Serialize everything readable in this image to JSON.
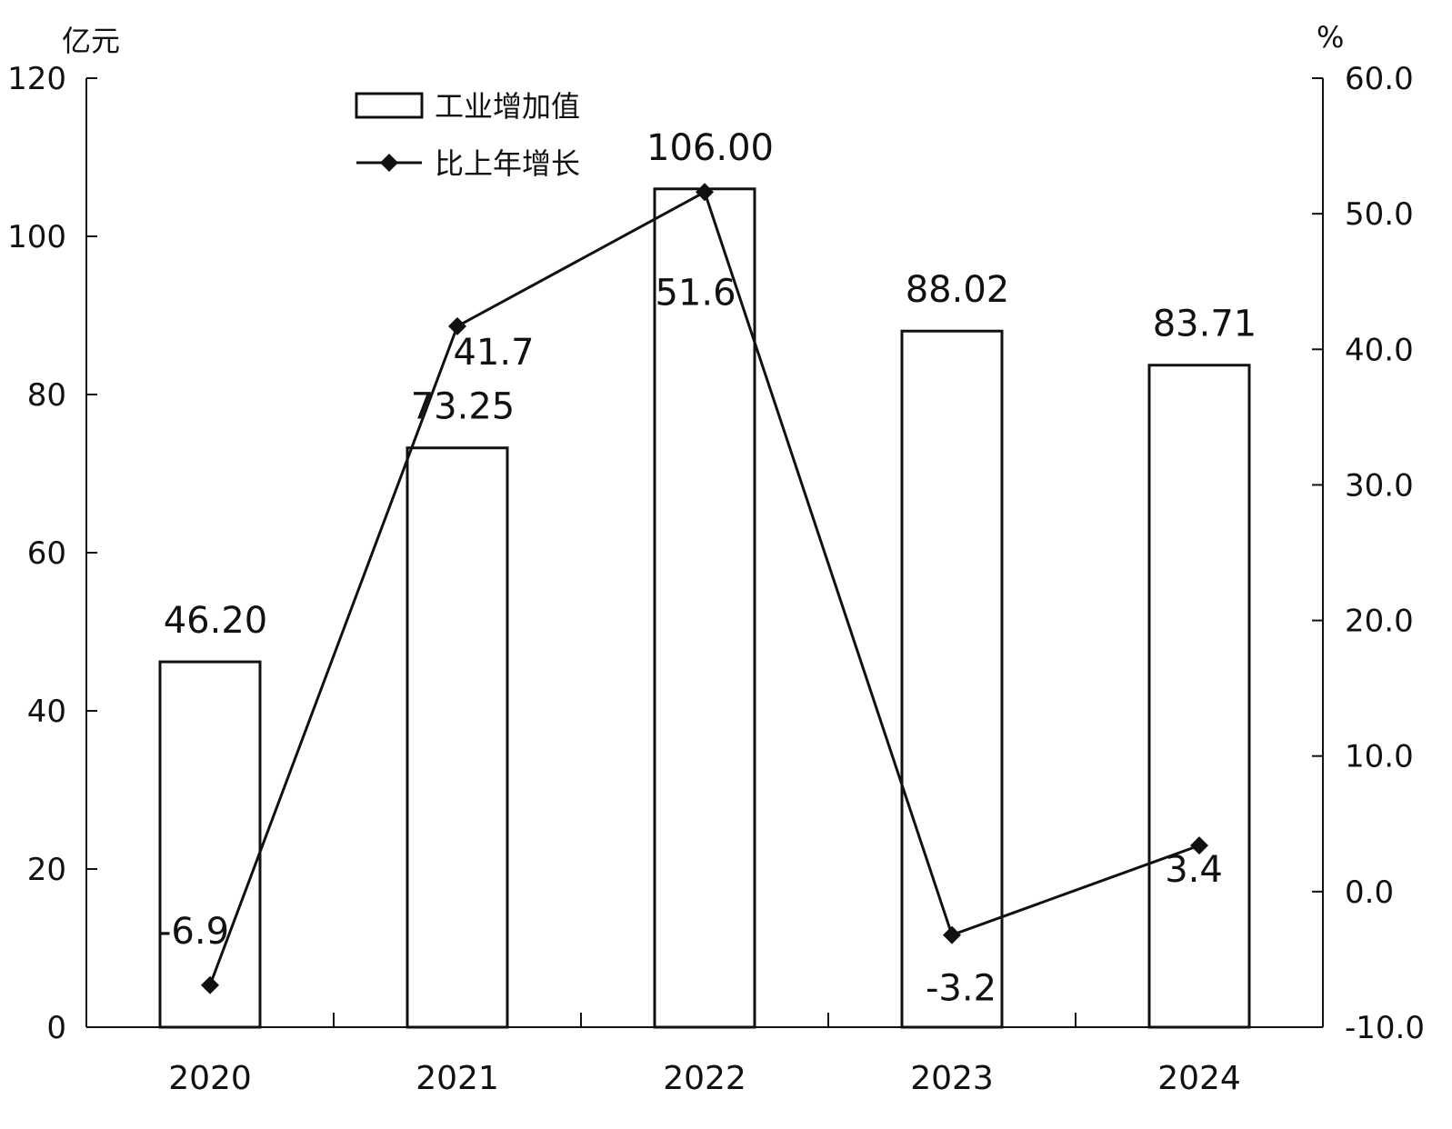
{
  "chart_data": {
    "type": "bar",
    "categories": [
      "2020",
      "2021",
      "2022",
      "2023",
      "2024"
    ],
    "series": [
      {
        "name": "工业增加值",
        "type": "bar",
        "axis": "left",
        "values": [
          46.2,
          73.25,
          106.0,
          88.02,
          83.71
        ],
        "labels": [
          "46.20",
          "73.25",
          "106.00",
          "88.02",
          "83.71"
        ]
      },
      {
        "name": "比上年增长",
        "type": "line",
        "axis": "right",
        "values": [
          -6.9,
          41.7,
          51.6,
          -3.2,
          3.4
        ],
        "labels": [
          "-6.9",
          "41.7",
          "51.6",
          "-3.2",
          "3.4"
        ]
      }
    ],
    "left_axis": {
      "unit": "亿元",
      "min": 0,
      "max": 120,
      "ticks": [
        0,
        20,
        40,
        60,
        80,
        100,
        120
      ],
      "tick_labels": [
        "0",
        "20",
        "40",
        "60",
        "80",
        "100",
        "120"
      ]
    },
    "right_axis": {
      "unit": "%",
      "min": -10,
      "max": 60,
      "ticks": [
        -10,
        0,
        10,
        20,
        30,
        40,
        50,
        60
      ],
      "tick_labels": [
        "-10.0",
        "0.0",
        "10.0",
        "20.0",
        "30.0",
        "40.0",
        "50.0",
        "60.0"
      ]
    },
    "legend_position": "top-left",
    "grid": false,
    "colors": {
      "bar_fill": "#ffffff",
      "bar_stroke": "#111111",
      "line": "#111111"
    }
  }
}
